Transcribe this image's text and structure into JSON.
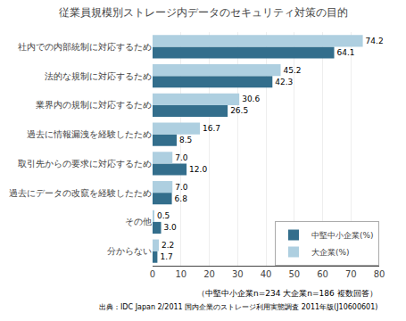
{
  "chart_data": {
    "type": "bar",
    "orientation": "horizontal",
    "title": "従業員規模別ストレージ内データのセキュリティ対策の目的",
    "categories": [
      "分からない",
      "その他",
      "過去にデータの改竄を経験したため",
      "取引先からの要求に対応するため",
      "過去に情報漏洩を経験したため",
      "業界内の規制に対応するため",
      "法的な規制に対応するため",
      "社内での内部統制に対応するため"
    ],
    "series": [
      {
        "name": "中堅中小企業(%)",
        "color": "#336e8c",
        "values": [
          1.7,
          3.0,
          6.8,
          12.0,
          8.5,
          26.5,
          42.3,
          64.1
        ],
        "value_labels": [
          "1.7",
          "3.0",
          "6.8",
          "12.0",
          "8.5",
          "26.5",
          "42.3",
          "64.1"
        ]
      },
      {
        "name": "大企業(%)",
        "color": "#aecfe0",
        "values": [
          2.2,
          0.5,
          7.0,
          7.0,
          16.7,
          30.6,
          45.2,
          74.2
        ],
        "value_labels": [
          "2.2",
          "0.5",
          "7.0",
          "7.0",
          "16.7",
          "30.6",
          "45.2",
          "74.2"
        ]
      }
    ],
    "xlim": [
      0,
      80
    ],
    "xticks": [
      0,
      10,
      20,
      30,
      40,
      50,
      60,
      70,
      80
    ],
    "grid": true,
    "legend": "lower right",
    "data_labels": true,
    "annotations": [
      "（中堅中小企業n=234 大企業n=186 複数回答）",
      "出典：IDC Japan 2/2011 国内企業のストレージ利用実態調査 2011年版(J10600601)"
    ]
  }
}
